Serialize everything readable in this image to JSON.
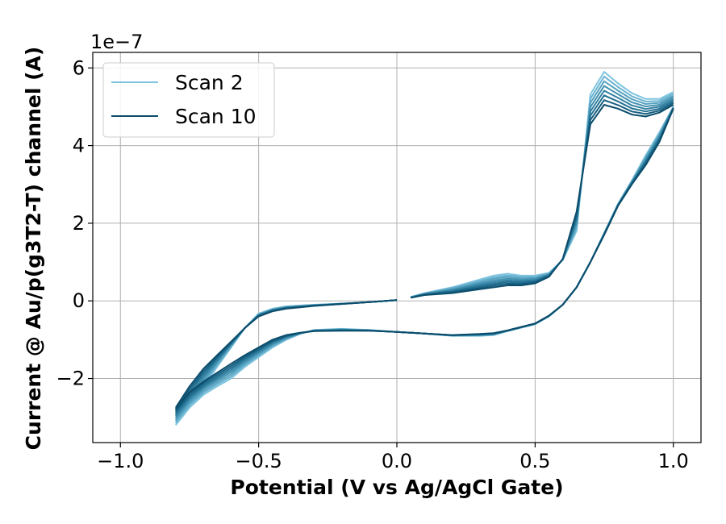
{
  "chart_data": {
    "type": "line",
    "xlabel": "Potential (V vs Ag/AgCl Gate)",
    "ylabel": "Current @ Au/p(g3T2-T) channel (A)",
    "y_offset_text": "1e−7",
    "xlim": [
      -1.1,
      1.1
    ],
    "ylim": [
      -3.65,
      6.4
    ],
    "xticks": [
      -1.0,
      -0.5,
      0.0,
      0.5,
      1.0
    ],
    "xtick_labels": [
      "−1.0",
      "−0.5",
      "0.0",
      "0.5",
      "1.0"
    ],
    "yticks": [
      -2,
      0,
      2,
      4,
      6
    ],
    "ytick_labels": [
      "−2",
      "0",
      "2",
      "4",
      "6"
    ],
    "grid": true,
    "legend_position": "top-left",
    "legend": [
      {
        "label": "Scan 2",
        "color": "#7fc4df"
      },
      {
        "label": "Scan 10",
        "color": "#0c4d6c"
      }
    ],
    "scan_colors": [
      "#7fc4df",
      "#6ab3d0",
      "#56a2c0",
      "#4391b1",
      "#3180a1",
      "#216f91",
      "#155e7f",
      "#0c4d6c"
    ],
    "series_first": {
      "name": "Scan 2",
      "segments": [
        {
          "x": [
            0.0,
            -0.1,
            -0.2,
            -0.3,
            -0.4,
            -0.45,
            -0.5,
            -0.55,
            -0.6,
            -0.65,
            -0.7,
            -0.75,
            -0.8
          ],
          "y": [
            0.02,
            -0.03,
            -0.07,
            -0.1,
            -0.14,
            -0.2,
            -0.33,
            -0.7,
            -1.2,
            -1.7,
            -2.2,
            -2.7,
            -3.15
          ]
        },
        {
          "x": [
            -0.8,
            -0.75,
            -0.7,
            -0.65,
            -0.6,
            -0.55,
            -0.5,
            -0.45,
            -0.4,
            -0.35,
            -0.3,
            -0.2,
            -0.1,
            0.0,
            0.1,
            0.2,
            0.3,
            0.35,
            0.4,
            0.5,
            0.55,
            0.6,
            0.65,
            0.7,
            0.75,
            0.8,
            0.85,
            0.9,
            0.95,
            1.0
          ],
          "y": [
            -3.2,
            -2.75,
            -2.42,
            -2.2,
            -2.0,
            -1.7,
            -1.45,
            -1.2,
            -1.0,
            -0.85,
            -0.75,
            -0.72,
            -0.75,
            -0.8,
            -0.84,
            -0.9,
            -0.9,
            -0.88,
            -0.78,
            -0.6,
            -0.4,
            -0.1,
            0.35,
            1.0,
            1.75,
            2.5,
            3.1,
            3.75,
            4.35,
            5.0
          ]
        },
        {
          "x": [
            1.0,
            0.95,
            0.9,
            0.85,
            0.8,
            0.75,
            0.7,
            0.65,
            0.6,
            0.55,
            0.5,
            0.45,
            0.4,
            0.35,
            0.3,
            0.2,
            0.1,
            0.05
          ],
          "y": [
            5.38,
            5.2,
            5.2,
            5.35,
            5.6,
            5.9,
            5.32,
            1.8,
            1.05,
            0.72,
            0.65,
            0.65,
            0.7,
            0.65,
            0.55,
            0.35,
            0.2,
            0.1
          ]
        }
      ]
    },
    "series_last": {
      "name": "Scan 10",
      "segments": [
        {
          "x": [
            0.0,
            -0.1,
            -0.2,
            -0.3,
            -0.4,
            -0.45,
            -0.5,
            -0.55,
            -0.6,
            -0.65,
            -0.7,
            -0.75,
            -0.8
          ],
          "y": [
            0.02,
            -0.03,
            -0.08,
            -0.13,
            -0.2,
            -0.27,
            -0.4,
            -0.7,
            -1.05,
            -1.4,
            -1.75,
            -2.2,
            -2.75
          ]
        },
        {
          "x": [
            -0.8,
            -0.75,
            -0.7,
            -0.65,
            -0.6,
            -0.55,
            -0.5,
            -0.45,
            -0.4,
            -0.35,
            -0.3,
            -0.2,
            -0.1,
            0.0,
            0.1,
            0.2,
            0.3,
            0.35,
            0.4,
            0.5,
            0.55,
            0.6,
            0.65,
            0.7,
            0.75,
            0.8,
            0.85,
            0.9,
            0.95,
            1.0
          ],
          "y": [
            -2.78,
            -2.35,
            -2.08,
            -1.85,
            -1.62,
            -1.4,
            -1.2,
            -1.0,
            -0.88,
            -0.82,
            -0.78,
            -0.77,
            -0.77,
            -0.8,
            -0.84,
            -0.88,
            -0.85,
            -0.83,
            -0.76,
            -0.58,
            -0.38,
            -0.1,
            0.35,
            1.0,
            1.7,
            2.45,
            3.0,
            3.5,
            4.1,
            4.95
          ]
        },
        {
          "x": [
            1.0,
            0.95,
            0.9,
            0.85,
            0.8,
            0.75,
            0.7,
            0.65,
            0.6,
            0.55,
            0.5,
            0.45,
            0.4,
            0.35,
            0.3,
            0.2,
            0.1,
            0.05
          ],
          "y": [
            5.05,
            4.85,
            4.75,
            4.8,
            4.95,
            5.05,
            4.55,
            2.3,
            1.08,
            0.62,
            0.45,
            0.4,
            0.4,
            0.35,
            0.3,
            0.2,
            0.15,
            0.08
          ]
        }
      ]
    }
  }
}
